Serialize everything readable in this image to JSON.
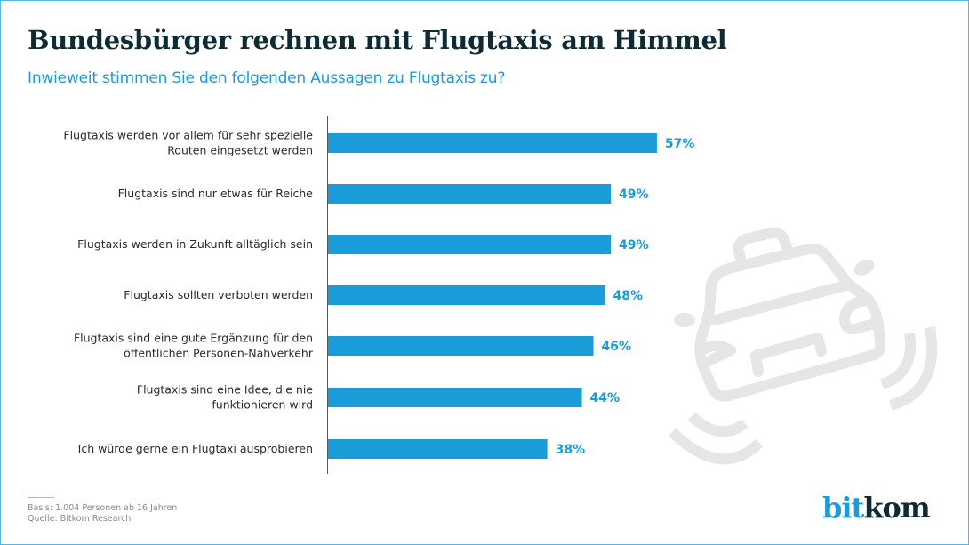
{
  "header": {
    "title": "Bundesbürger rechnen mit Flugtaxis am Himmel",
    "subtitle": "Inwieweit stimmen Sie den folgenden Aussagen zu Flugtaxis zu?"
  },
  "chart_data": {
    "type": "bar",
    "orientation": "horizontal",
    "title": "Bundesbürger rechnen mit Flugtaxis am Himmel",
    "subtitle": "Inwieweit stimmen Sie den folgenden Aussagen zu Flugtaxis zu?",
    "xlabel": "",
    "ylabel": "",
    "unit": "%",
    "grid": false,
    "legend": "none",
    "xlim": [
      0,
      100
    ],
    "bar_color": "#1a9cd8",
    "categories": [
      [
        "Flugtaxis werden vor allem für sehr spezielle",
        "Routen eingesetzt werden"
      ],
      [
        "Flugtaxis sind nur etwas für Reiche"
      ],
      [
        "Flugtaxis werden in Zukunft alltäglich sein"
      ],
      [
        "Flugtaxis sollten verboten werden"
      ],
      [
        "Flugtaxis sind eine gute Ergänzung für den",
        "öffentlichen Personen-Nahverkehr"
      ],
      [
        "Flugtaxis sind eine Idee, die nie",
        "funktionieren wird"
      ],
      [
        "Ich würde gerne ein Flugtaxi ausprobieren"
      ]
    ],
    "values": [
      57,
      49,
      49,
      48,
      46,
      44,
      38
    ],
    "value_labels": [
      "57%",
      "49%",
      "49%",
      "48%",
      "46%",
      "44%",
      "38%"
    ]
  },
  "footer": {
    "basis": "Basis: 1.004 Personen ab 16 Jahren",
    "source": "Quelle: Bitkom Research"
  },
  "logo": {
    "part1": "bit",
    "part2": "kom"
  },
  "decoration": {
    "icon": "flying-taxi-icon",
    "color": "#e6e6e6"
  }
}
